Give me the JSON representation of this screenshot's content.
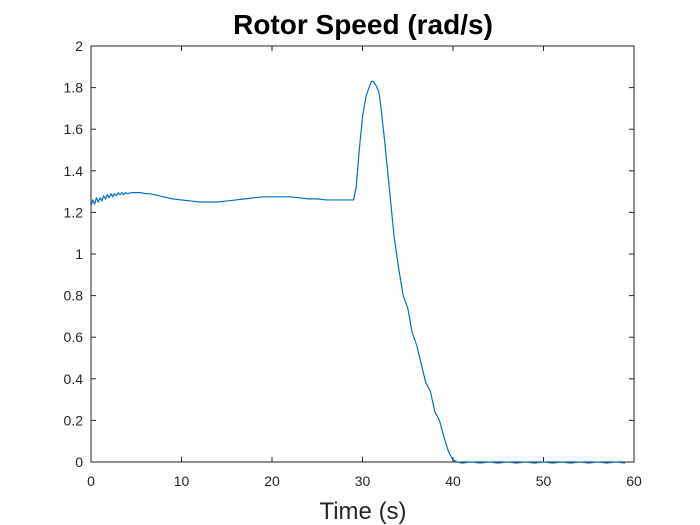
{
  "chart_data": {
    "type": "line",
    "title": "Rotor Speed (rad/s)",
    "xlabel": "Time (s)",
    "ylabel": "",
    "xlim": [
      0,
      60
    ],
    "ylim": [
      0,
      2
    ],
    "xticks": [
      0,
      10,
      20,
      30,
      40,
      50,
      60
    ],
    "yticks": [
      0,
      0.2,
      0.4,
      0.6,
      0.8,
      1,
      1.2,
      1.4,
      1.6,
      1.8,
      2
    ],
    "xtick_labels": [
      "0",
      "10",
      "20",
      "30",
      "40",
      "50",
      "60"
    ],
    "ytick_labels": [
      "0",
      "0.2",
      "0.4",
      "0.6",
      "0.8",
      "1",
      "1.2",
      "1.4",
      "1.6",
      "1.8",
      "2"
    ],
    "grid": false,
    "series": [
      {
        "color": "#0072BD",
        "x": [
          0,
          0.2,
          0.4,
          0.6,
          0.8,
          1.0,
          1.2,
          1.4,
          1.6,
          1.8,
          2.0,
          2.2,
          2.4,
          2.6,
          2.8,
          3.0,
          3.2,
          3.4,
          3.6,
          3.8,
          4.0,
          4.5,
          5,
          5.5,
          6,
          6.5,
          7,
          8,
          9,
          10,
          11,
          12,
          13,
          14,
          15,
          16,
          17,
          18,
          19,
          20,
          21,
          22,
          23,
          24,
          25,
          26,
          27,
          28,
          28.6,
          29.0,
          29.3,
          29.6,
          30.0,
          30.4,
          30.8,
          31.0,
          31.2,
          31.5,
          31.8,
          32.0,
          32.5,
          33.0,
          33.5,
          34.0,
          34.5,
          35.0,
          35.5,
          36.0,
          36.5,
          37.0,
          37.5,
          38.0,
          38.5,
          39.0,
          39.5,
          40.0,
          40.5,
          41,
          42,
          43,
          44,
          45,
          46,
          47,
          48,
          49,
          50,
          51,
          52,
          53,
          54,
          55,
          56,
          57,
          58,
          59
        ],
        "y": [
          1.23,
          1.26,
          1.24,
          1.27,
          1.25,
          1.27,
          1.255,
          1.28,
          1.265,
          1.285,
          1.27,
          1.29,
          1.275,
          1.29,
          1.28,
          1.295,
          1.285,
          1.295,
          1.285,
          1.295,
          1.29,
          1.295,
          1.295,
          1.295,
          1.29,
          1.29,
          1.285,
          1.275,
          1.265,
          1.26,
          1.255,
          1.25,
          1.25,
          1.25,
          1.255,
          1.26,
          1.265,
          1.27,
          1.275,
          1.275,
          1.275,
          1.275,
          1.27,
          1.265,
          1.265,
          1.26,
          1.26,
          1.26,
          1.26,
          1.26,
          1.32,
          1.48,
          1.66,
          1.76,
          1.81,
          1.83,
          1.83,
          1.81,
          1.78,
          1.72,
          1.52,
          1.3,
          1.08,
          0.93,
          0.8,
          0.74,
          0.62,
          0.56,
          0.47,
          0.38,
          0.34,
          0.24,
          0.2,
          0.12,
          0.05,
          0.01,
          0.0,
          -0.005,
          0.0,
          -0.005,
          0.0,
          -0.005,
          0.0,
          -0.005,
          0.0,
          -0.005,
          0.0,
          -0.005,
          0.0,
          -0.005,
          0.0,
          -0.005,
          0.0,
          -0.005,
          0.0,
          -0.005
        ]
      }
    ]
  }
}
